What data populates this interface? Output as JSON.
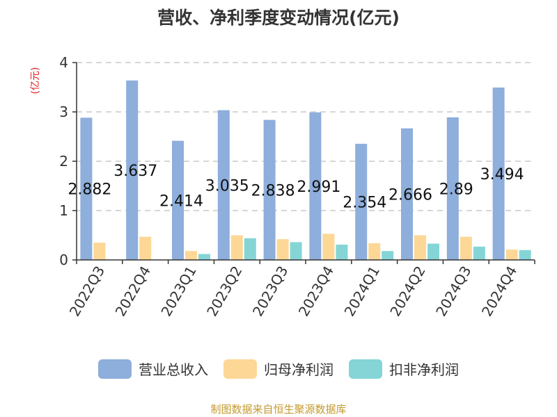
{
  "source_text": "制图数据来自恒生聚源数据库",
  "chart_data": {
    "type": "bar",
    "title": "营收、净利季度变动情况(亿元)",
    "ylabel": "(亿元)",
    "ylim": [
      0,
      4
    ],
    "yticks": [
      0,
      1,
      2,
      3,
      4
    ],
    "grid": true,
    "legend_position": "bottom",
    "categories": [
      "2022Q3",
      "2022Q4",
      "2023Q1",
      "2023Q2",
      "2023Q3",
      "2023Q4",
      "2024Q1",
      "2024Q2",
      "2024Q3",
      "2024Q4"
    ],
    "series": [
      {
        "name": "营业总收入",
        "color": "#8eaedb",
        "values": [
          2.882,
          3.637,
          2.414,
          3.035,
          2.838,
          2.991,
          2.354,
          2.666,
          2.89,
          3.494
        ],
        "data_labels": [
          "2.882",
          "3.637",
          "2.414",
          "3.035",
          "2.838",
          "2.991",
          "2.354",
          "2.666",
          "2.89",
          "3.494"
        ]
      },
      {
        "name": "归母净利润",
        "color": "#fdd796",
        "values": [
          0.35,
          0.47,
          0.18,
          0.5,
          0.42,
          0.53,
          0.34,
          0.5,
          0.47,
          0.21
        ]
      },
      {
        "name": "扣非净利润",
        "color": "#85d5d6",
        "values": [
          null,
          null,
          0.12,
          0.44,
          0.36,
          0.31,
          0.18,
          0.33,
          0.27,
          0.2
        ]
      }
    ]
  }
}
